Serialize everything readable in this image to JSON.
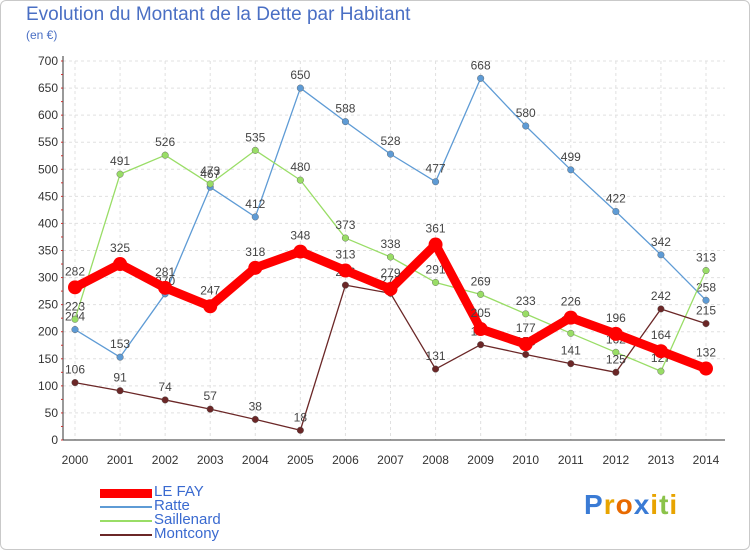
{
  "chart_data": {
    "type": "line",
    "title": "Evolution du Montant de la Dette par Habitant",
    "subtitle": "(en €)",
    "xlabel": "",
    "ylabel": "",
    "x": [
      "2000",
      "2001",
      "2002",
      "2003",
      "2004",
      "2005",
      "2006",
      "2007",
      "2008",
      "2009",
      "2010",
      "2011",
      "2012",
      "2013",
      "2014"
    ],
    "ylim": [
      0,
      700
    ],
    "yticks": [
      "0",
      "50",
      "100",
      "150",
      "200",
      "250",
      "300",
      "350",
      "400",
      "450",
      "500",
      "550",
      "600",
      "650",
      "700"
    ],
    "grid": true,
    "legend_position": "bottom-left",
    "series": [
      {
        "name": "LE FAY",
        "color": "#ff0000",
        "values": [
          282,
          325,
          281,
          247,
          318,
          348,
          313,
          279,
          361,
          205,
          177,
          226,
          196,
          164,
          132
        ]
      },
      {
        "name": "Ratte",
        "color": "#5e9bd5",
        "values": [
          204,
          153,
          270,
          467,
          412,
          650,
          588,
          528,
          477,
          668,
          580,
          499,
          422,
          342,
          258
        ]
      },
      {
        "name": "Saillenard",
        "color": "#99dd66",
        "values": [
          223,
          491,
          526,
          473,
          535,
          480,
          373,
          338,
          291,
          269,
          233,
          197,
          162,
          127,
          313
        ]
      },
      {
        "name": "Montcony",
        "color": "#6b2727",
        "values": [
          106,
          91,
          74,
          57,
          38,
          18,
          286,
          271,
          131,
          176,
          158,
          141,
          125,
          242,
          215
        ]
      }
    ]
  },
  "logo": {
    "letters": [
      "P",
      "r",
      "o",
      "x",
      "i",
      "t",
      "i"
    ],
    "colors": [
      "#3a7bd5",
      "#e8a400",
      "#e86a00",
      "#3a7bd5",
      "#e8a400",
      "#8bc34a",
      "#e8a400"
    ]
  }
}
